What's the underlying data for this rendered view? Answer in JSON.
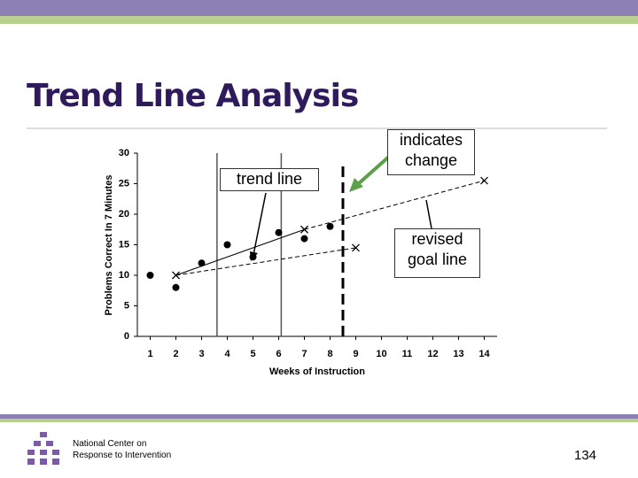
{
  "title": "Trend Line Analysis",
  "footer": {
    "org_line1": "National Center on",
    "org_line2": "Response to Intervention",
    "page_number": "134"
  },
  "chart_data": {
    "type": "scatter",
    "x_label": "Weeks of Instruction",
    "y_label": "Problems Correct In 7 Minutes",
    "x": [
      1,
      2,
      3,
      4,
      5,
      6,
      7,
      8
    ],
    "values": [
      10,
      8,
      12,
      15,
      13,
      17,
      16,
      18
    ],
    "color": "#000000",
    "xlim": [
      0.5,
      14.5
    ],
    "xticks": [
      1,
      2,
      3,
      4,
      5,
      6,
      7,
      8,
      9,
      10,
      11,
      12,
      13,
      14
    ],
    "ylim": [
      0,
      30
    ],
    "yticks": [
      0,
      5,
      10,
      15,
      20,
      25,
      30
    ],
    "phase_lines": [
      3.6,
      6.1
    ],
    "change_line": 8.5,
    "lines": [
      {
        "x": [
          2,
          7
        ],
        "values": [
          10,
          17.5
        ],
        "dashed": false
      },
      {
        "x": [
          2,
          9
        ],
        "values": [
          10,
          14.5
        ],
        "dashed": true
      },
      {
        "x": [
          7,
          14
        ],
        "values": [
          17.5,
          25.5
        ],
        "dashed": true
      }
    ],
    "annotations": [
      "trend line",
      "indicates change",
      "revised goal line"
    ]
  }
}
